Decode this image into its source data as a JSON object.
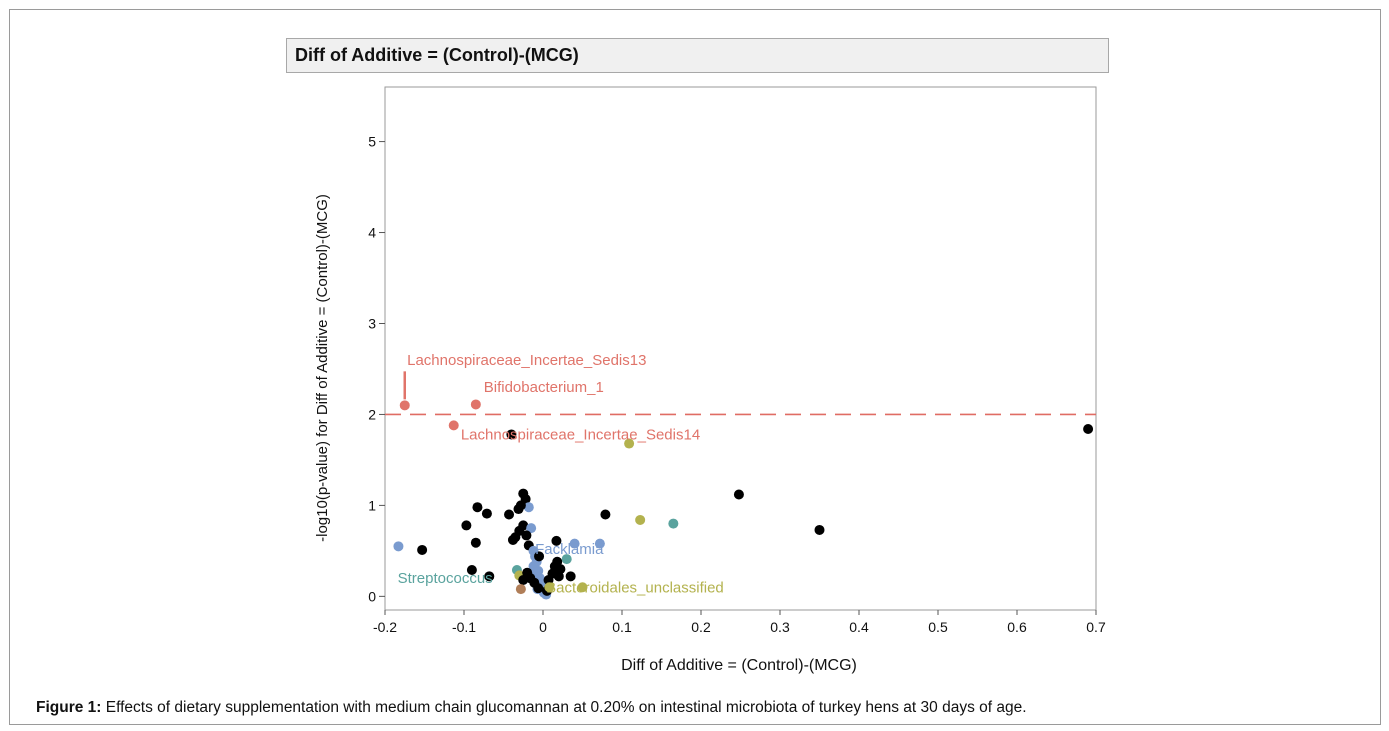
{
  "chart_data": {
    "type": "scatter",
    "title": "Diff of Additive = (Control)-(MCG)",
    "xlabel": "Diff of Additive = (Control)-(MCG)",
    "ylabel": "-log10(p-value) for Diff of Additive = (Control)-(MCG)",
    "xlim": [
      -0.2,
      0.7
    ],
    "ylim": [
      -0.15,
      5.6
    ],
    "xticks": [
      "-0.2",
      "-0.1",
      "0",
      "0.1",
      "0.2",
      "0.3",
      "0.4",
      "0.5",
      "0.6",
      "0.7"
    ],
    "yticks": [
      "0",
      "1",
      "2",
      "3",
      "4",
      "5"
    ],
    "threshold": 2,
    "threshold_color": "#e06c64",
    "colors": {
      "red": "#e0746a",
      "blue": "#7a9bcf",
      "teal": "#5aa39e",
      "olive": "#b3b24e",
      "brown": "#b07e58",
      "black": "#000000"
    },
    "points": [
      {
        "x": -0.175,
        "y": 2.1,
        "c": "red"
      },
      {
        "x": -0.085,
        "y": 2.11,
        "c": "red"
      },
      {
        "x": -0.113,
        "y": 1.88,
        "c": "red"
      },
      {
        "x": -0.04,
        "y": 1.78,
        "c": "black"
      },
      {
        "x": 0.109,
        "y": 1.68,
        "c": "olive"
      },
      {
        "x": 0.69,
        "y": 1.84,
        "c": "black"
      },
      {
        "x": 0.248,
        "y": 1.12,
        "c": "black"
      },
      {
        "x": 0.35,
        "y": 0.73,
        "c": "black"
      },
      {
        "x": 0.123,
        "y": 0.84,
        "c": "olive"
      },
      {
        "x": 0.165,
        "y": 0.8,
        "c": "teal"
      },
      {
        "x": 0.079,
        "y": 0.9,
        "c": "black"
      },
      {
        "x": -0.183,
        "y": 0.55,
        "c": "blue"
      },
      {
        "x": -0.153,
        "y": 0.51,
        "c": "black"
      },
      {
        "x": -0.097,
        "y": 0.78,
        "c": "black"
      },
      {
        "x": -0.083,
        "y": 0.98,
        "c": "black"
      },
      {
        "x": -0.071,
        "y": 0.91,
        "c": "black"
      },
      {
        "x": -0.085,
        "y": 0.59,
        "c": "black"
      },
      {
        "x": -0.09,
        "y": 0.29,
        "c": "black"
      },
      {
        "x": -0.068,
        "y": 0.22,
        "c": "black"
      },
      {
        "x": -0.043,
        "y": 0.9,
        "c": "black"
      },
      {
        "x": -0.025,
        "y": 1.13,
        "c": "black"
      },
      {
        "x": -0.022,
        "y": 1.07,
        "c": "black"
      },
      {
        "x": -0.018,
        "y": 0.98,
        "c": "blue"
      },
      {
        "x": -0.028,
        "y": 1.0,
        "c": "black"
      },
      {
        "x": -0.031,
        "y": 0.96,
        "c": "black"
      },
      {
        "x": -0.025,
        "y": 0.78,
        "c": "black"
      },
      {
        "x": -0.015,
        "y": 0.75,
        "c": "blue"
      },
      {
        "x": -0.03,
        "y": 0.72,
        "c": "black"
      },
      {
        "x": -0.021,
        "y": 0.67,
        "c": "black"
      },
      {
        "x": -0.035,
        "y": 0.65,
        "c": "black"
      },
      {
        "x": -0.038,
        "y": 0.62,
        "c": "black"
      },
      {
        "x": -0.018,
        "y": 0.56,
        "c": "black"
      },
      {
        "x": -0.012,
        "y": 0.5,
        "c": "blue"
      },
      {
        "x": -0.01,
        "y": 0.44,
        "c": "blue"
      },
      {
        "x": -0.008,
        "y": 0.38,
        "c": "blue"
      },
      {
        "x": -0.012,
        "y": 0.33,
        "c": "blue"
      },
      {
        "x": -0.006,
        "y": 0.28,
        "c": "blue"
      },
      {
        "x": -0.015,
        "y": 0.24,
        "c": "blue"
      },
      {
        "x": -0.004,
        "y": 0.2,
        "c": "blue"
      },
      {
        "x": -0.01,
        "y": 0.16,
        "c": "blue"
      },
      {
        "x": -0.002,
        "y": 0.12,
        "c": "blue"
      },
      {
        "x": -0.007,
        "y": 0.08,
        "c": "blue"
      },
      {
        "x": 0.001,
        "y": 0.04,
        "c": "blue"
      },
      {
        "x": 0.004,
        "y": 0.02,
        "c": "blue"
      },
      {
        "x": -0.033,
        "y": 0.29,
        "c": "teal"
      },
      {
        "x": -0.03,
        "y": 0.23,
        "c": "olive"
      },
      {
        "x": -0.02,
        "y": 0.26,
        "c": "black"
      },
      {
        "x": -0.025,
        "y": 0.18,
        "c": "black"
      },
      {
        "x": -0.016,
        "y": 0.2,
        "c": "black"
      },
      {
        "x": -0.011,
        "y": 0.15,
        "c": "black"
      },
      {
        "x": -0.006,
        "y": 0.09,
        "c": "black"
      },
      {
        "x": 0.005,
        "y": 0.06,
        "c": "black"
      },
      {
        "x": 0.012,
        "y": 0.25,
        "c": "black"
      },
      {
        "x": 0.015,
        "y": 0.33,
        "c": "black"
      },
      {
        "x": 0.018,
        "y": 0.38,
        "c": "black"
      },
      {
        "x": 0.022,
        "y": 0.3,
        "c": "black"
      },
      {
        "x": 0.02,
        "y": 0.22,
        "c": "black"
      },
      {
        "x": 0.007,
        "y": 0.18,
        "c": "black"
      },
      {
        "x": 0.017,
        "y": 0.61,
        "c": "black"
      },
      {
        "x": 0.035,
        "y": 0.22,
        "c": "black"
      },
      {
        "x": 0.03,
        "y": 0.41,
        "c": "teal"
      },
      {
        "x": 0.04,
        "y": 0.58,
        "c": "blue"
      },
      {
        "x": 0.072,
        "y": 0.58,
        "c": "blue"
      },
      {
        "x": 0.05,
        "y": 0.1,
        "c": "olive"
      },
      {
        "x": -0.028,
        "y": 0.08,
        "c": "brown"
      },
      {
        "x": 0.008,
        "y": 0.1,
        "c": "olive"
      },
      {
        "x": -0.005,
        "y": 0.44,
        "c": "black"
      }
    ],
    "annotations": [
      {
        "text": "Lachnospiraceae_Incertae_Sedis13",
        "c": "red",
        "x": -0.172,
        "y": 2.6
      },
      {
        "text": "Bifidobacterium_1",
        "c": "red",
        "x": -0.075,
        "y": 2.3
      },
      {
        "text": "Lachnospiraceae_Incertae_Sedis14",
        "c": "red",
        "x": -0.104,
        "y": 1.78
      },
      {
        "text": "Facklamia",
        "c": "blue",
        "x": -0.01,
        "y": 0.52
      },
      {
        "text": "Streptococcus",
        "c": "teal",
        "x": -0.184,
        "y": 0.2
      },
      {
        "text": "Bacteroidales_unclassified",
        "c": "olive",
        "x": 0.004,
        "y": 0.1
      }
    ]
  },
  "caption": {
    "label": "Figure 1:",
    "text": " Effects of dietary supplementation with medium chain glucomannan at 0.20% on intestinal microbiota of turkey hens at 30 days of age."
  }
}
